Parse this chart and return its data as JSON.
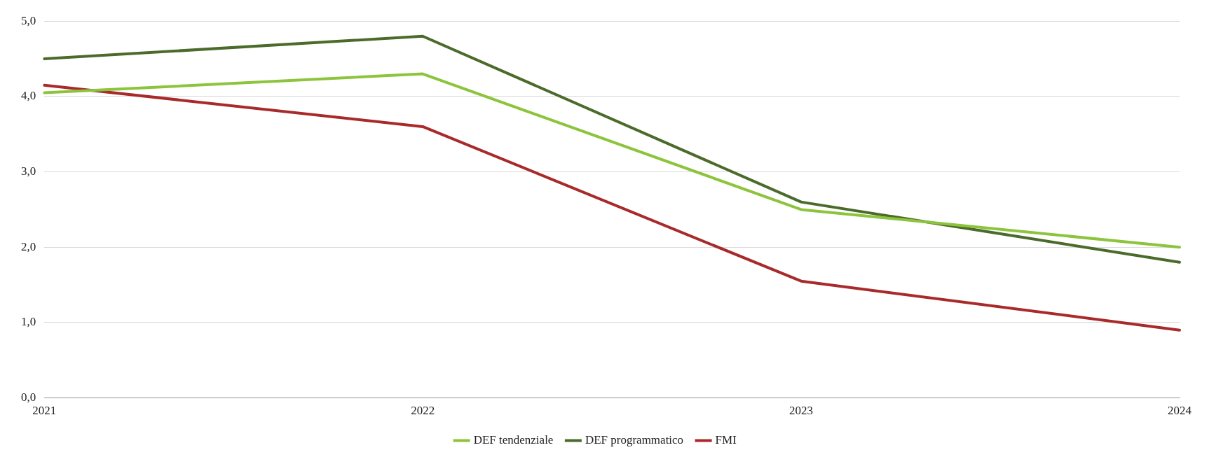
{
  "chart_data": {
    "type": "line",
    "categories": [
      "2021",
      "2022",
      "2023",
      "2024"
    ],
    "series": [
      {
        "name": "DEF tendenziale",
        "color": "#8cc43c",
        "values": [
          4.05,
          4.3,
          2.5,
          2.0
        ]
      },
      {
        "name": "DEF programmatico",
        "color": "#4b6b2a",
        "values": [
          4.5,
          4.8,
          2.6,
          1.8
        ]
      },
      {
        "name": "FMI",
        "color": "#a82a2a",
        "values": [
          4.15,
          3.6,
          1.55,
          0.9
        ]
      }
    ],
    "ylim": [
      0,
      5
    ],
    "yticks": [
      {
        "value": 0,
        "label": "0,0"
      },
      {
        "value": 1,
        "label": "1,0"
      },
      {
        "value": 2,
        "label": "2,0"
      },
      {
        "value": 3,
        "label": "3,0"
      },
      {
        "value": 4,
        "label": "4,0"
      },
      {
        "value": 5,
        "label": "5,0"
      }
    ],
    "grid": "y",
    "legend": "bottom",
    "marker": "none",
    "line_style": "solid"
  }
}
